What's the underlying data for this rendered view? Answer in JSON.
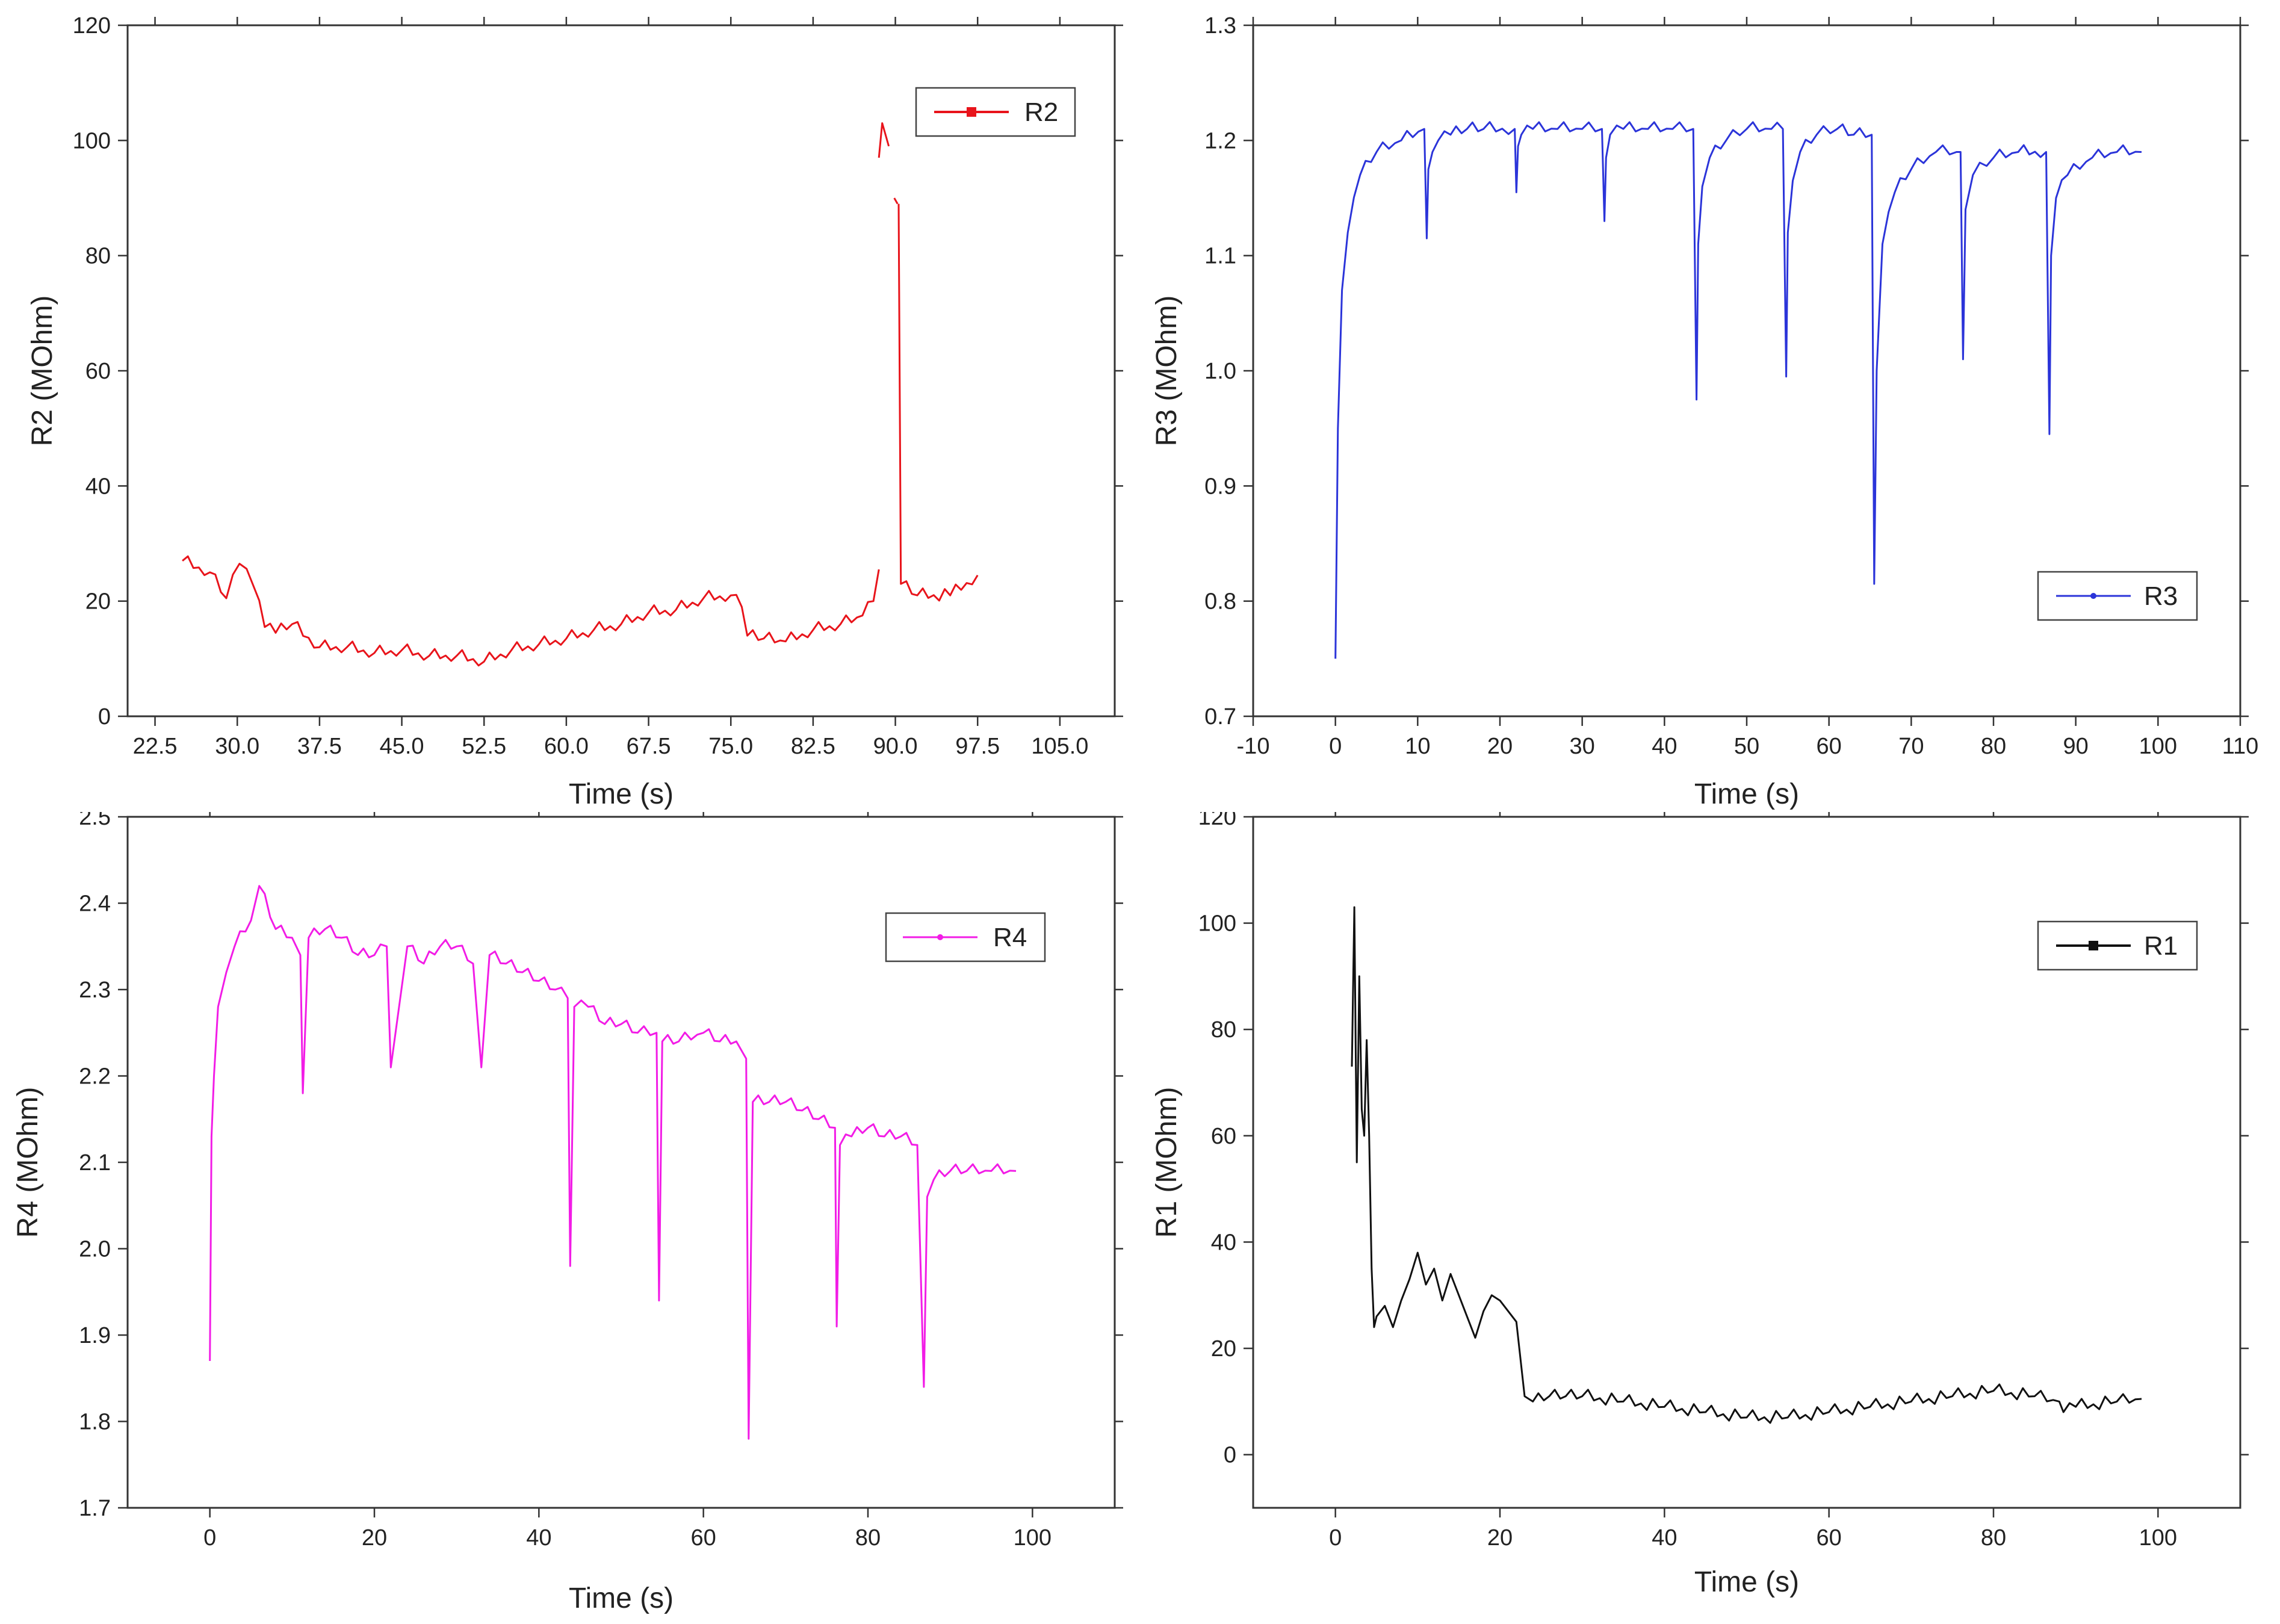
{
  "chart_data": [
    {
      "id": "r2",
      "type": "line",
      "xlabel": "Time (s)",
      "ylabel": "R2 (MOhm)",
      "xlim": [
        20.0,
        110.0
      ],
      "ylim": [
        0,
        120
      ],
      "xticks": [
        22.5,
        30.0,
        37.5,
        45.0,
        52.5,
        60.0,
        67.5,
        75.0,
        82.5,
        90.0,
        97.5,
        105.0
      ],
      "xtick_labels": [
        "22.5",
        "30.0",
        "37.5",
        "45.0",
        "52.5",
        "60.0",
        "67.5",
        "75.0",
        "82.5",
        "90.0",
        "97.5",
        "105.0"
      ],
      "yticks": [
        0,
        20,
        40,
        60,
        80,
        100,
        120
      ],
      "ytick_labels": [
        "0",
        "20",
        "40",
        "60",
        "80",
        "100",
        "120"
      ],
      "legend": "top-right",
      "series": [
        {
          "name": "R2",
          "color": "#e8141b",
          "marker": "square",
          "segments": [
            {
              "x": [
                25,
                27.5,
                29,
                30.2,
                31.5,
                32.5,
                33.5,
                35,
                37.5,
                40,
                42.5,
                45,
                47.5,
                50,
                52.5,
                55,
                57.5,
                60,
                62.5,
                65,
                67.5,
                70,
                72.5,
                75,
                76,
                76.5,
                78,
                80,
                82.5,
                85,
                87,
                88,
                88.5
              ],
              "y": [
                27,
                25,
                20.5,
                26.5,
                22.5,
                15.5,
                14.5,
                16,
                12,
                12,
                11,
                11.5,
                10.5,
                10.5,
                9.5,
                11.5,
                12.5,
                13.5,
                15,
                16,
                18,
                18.5,
                20.5,
                21,
                19,
                14,
                13.5,
                13,
                15,
                16,
                17.5,
                20,
                25.5
              ]
            },
            {
              "x": [
                88.5,
                88.8,
                89.1,
                89.4
              ],
              "y": [
                97,
                103,
                101,
                99
              ]
            },
            {
              "x": [
                89.9,
                90.2
              ],
              "y": [
                90,
                89
              ]
            },
            {
              "x": [
                90.3,
                90.5,
                92,
                95,
                97.5
              ],
              "y": [
                89,
                23,
                21,
                21,
                24.5
              ]
            }
          ]
        }
      ]
    },
    {
      "id": "r3",
      "type": "line",
      "xlabel": "Time (s)",
      "ylabel": "R3 (MOhm)",
      "xlim": [
        -10,
        110
      ],
      "ylim": [
        0.7,
        1.3
      ],
      "xticks": [
        -10,
        0,
        10,
        20,
        30,
        40,
        50,
        60,
        70,
        80,
        90,
        100,
        110
      ],
      "xtick_labels": [
        "-10",
        "0",
        "10",
        "20",
        "30",
        "40",
        "50",
        "60",
        "70",
        "80",
        "90",
        "100",
        "110"
      ],
      "yticks": [
        0.7,
        0.8,
        0.9,
        1.0,
        1.1,
        1.2,
        1.3
      ],
      "ytick_labels": [
        "0.7",
        "0.8",
        "0.9",
        "1.0",
        "1.1",
        "1.2",
        "1.3"
      ],
      "legend": "bottom-right",
      "series": [
        {
          "name": "R3",
          "color": "#2b34d9",
          "marker": "dot",
          "x": [
            0,
            0.3,
            0.8,
            1.5,
            3,
            5,
            8,
            10.8,
            11.1,
            11.3,
            11.8,
            12.5,
            14,
            16,
            18,
            21.8,
            22,
            22.2,
            22.6,
            24,
            27,
            30,
            32.4,
            32.7,
            32.9,
            33.4,
            35,
            38,
            41,
            43.5,
            43.9,
            44.1,
            44.6,
            45.5,
            47.5,
            50,
            53,
            54.4,
            54.8,
            55,
            55.6,
            56.5,
            58.5,
            61,
            63,
            65.2,
            65.5,
            65.8,
            66.5,
            68,
            70,
            73,
            75.5,
            76,
            76.3,
            76.6,
            77.5,
            80,
            83,
            86.4,
            86.8,
            87,
            87.6,
            89,
            92,
            95,
            98
          ],
          "y": [
            0.75,
            0.95,
            1.07,
            1.12,
            1.17,
            1.19,
            1.2,
            1.21,
            1.115,
            1.175,
            1.19,
            1.2,
            1.205,
            1.21,
            1.21,
            1.21,
            1.155,
            1.195,
            1.205,
            1.21,
            1.21,
            1.21,
            1.21,
            1.13,
            1.185,
            1.205,
            1.21,
            1.21,
            1.21,
            1.21,
            0.975,
            1.11,
            1.16,
            1.185,
            1.2,
            1.21,
            1.21,
            1.21,
            0.995,
            1.12,
            1.165,
            1.19,
            1.205,
            1.21,
            1.205,
            1.205,
            0.815,
            1.0,
            1.11,
            1.155,
            1.175,
            1.19,
            1.19,
            1.19,
            1.01,
            1.14,
            1.17,
            1.185,
            1.19,
            1.19,
            0.945,
            1.1,
            1.15,
            1.17,
            1.185,
            1.19,
            1.19
          ]
        }
      ]
    },
    {
      "id": "r4",
      "type": "line",
      "xlabel": "Time (s)",
      "ylabel": "R4 (MOhm)",
      "xlim": [
        -10,
        110
      ],
      "ylim": [
        1.7,
        2.5
      ],
      "xticks": [
        0,
        20,
        40,
        60,
        80,
        100
      ],
      "xtick_labels": [
        "0",
        "20",
        "40",
        "60",
        "80",
        "100"
      ],
      "yticks": [
        1.7,
        1.8,
        1.9,
        2.0,
        2.1,
        2.2,
        2.3,
        2.4,
        2.5
      ],
      "ytick_labels": [
        "1.7",
        "1.8",
        "1.9",
        "2.0",
        "2.1",
        "2.2",
        "2.3",
        "2.4",
        "2.5"
      ],
      "legend": "top-right",
      "series": [
        {
          "name": "R4",
          "color": "#f21ce6",
          "marker": "dot",
          "x": [
            0,
            0.2,
            0.5,
            1,
            2,
            3,
            5,
            6,
            8,
            10,
            11,
            11.3,
            12,
            14,
            16,
            18,
            20,
            21.5,
            22,
            24,
            26,
            28,
            30,
            32,
            33,
            34,
            36,
            38,
            40,
            42,
            43.5,
            43.8,
            44.3,
            46,
            48,
            50,
            52,
            54.3,
            54.6,
            55,
            57,
            60,
            62,
            64,
            65.2,
            65.5,
            66,
            68,
            70,
            72,
            74,
            76,
            76.2,
            76.6,
            78,
            80,
            82,
            84,
            86,
            86.8,
            87.2,
            88,
            90,
            92,
            95,
            98
          ],
          "y": [
            1.87,
            2.13,
            2.2,
            2.28,
            2.32,
            2.35,
            2.38,
            2.42,
            2.37,
            2.36,
            2.34,
            2.18,
            2.36,
            2.37,
            2.36,
            2.34,
            2.34,
            2.35,
            2.21,
            2.35,
            2.33,
            2.35,
            2.35,
            2.33,
            2.21,
            2.34,
            2.33,
            2.32,
            2.31,
            2.3,
            2.29,
            1.98,
            2.28,
            2.28,
            2.26,
            2.26,
            2.25,
            2.25,
            1.94,
            2.24,
            2.24,
            2.25,
            2.24,
            2.24,
            2.22,
            1.78,
            2.17,
            2.17,
            2.17,
            2.16,
            2.15,
            2.14,
            1.91,
            2.12,
            2.13,
            2.14,
            2.13,
            2.13,
            2.12,
            1.84,
            2.06,
            2.08,
            2.09,
            2.09,
            2.09,
            2.09
          ]
        }
      ]
    },
    {
      "id": "r1",
      "type": "line",
      "xlabel": "Time (s)",
      "ylabel": "R1 (MOhm)",
      "xlim": [
        -10,
        110
      ],
      "ylim": [
        -10,
        120
      ],
      "xticks": [
        0,
        20,
        40,
        60,
        80,
        100
      ],
      "xtick_labels": [
        "0",
        "20",
        "40",
        "60",
        "80",
        "100"
      ],
      "yticks": [
        0,
        20,
        40,
        60,
        80,
        100,
        120
      ],
      "ytick_labels": [
        "0",
        "20",
        "40",
        "60",
        "80",
        "100",
        "120"
      ],
      "legend": "top-right",
      "series": [
        {
          "name": "R1",
          "color": "#111111",
          "marker": "square",
          "x": [
            2,
            2.3,
            2.6,
            2.9,
            3.2,
            3.5,
            3.8,
            4.1,
            4.4,
            4.7,
            5,
            6,
            7,
            8,
            9,
            10,
            11,
            12,
            13,
            14,
            15,
            16,
            17,
            18,
            19,
            20,
            21,
            22,
            23,
            24,
            26,
            28,
            30,
            35,
            40,
            45,
            50,
            55,
            60,
            65,
            70,
            75,
            80,
            85,
            88,
            88.5,
            90,
            95,
            98
          ],
          "y": [
            73,
            103,
            55,
            90,
            65,
            60,
            78,
            60,
            35,
            24,
            26,
            28,
            24,
            29,
            33,
            38,
            32,
            35,
            29,
            34,
            30,
            26,
            22,
            27,
            30,
            29,
            27,
            25,
            11,
            10,
            11,
            11,
            11,
            10,
            9,
            8,
            7,
            7,
            8,
            9,
            10,
            11,
            12,
            11,
            10,
            8,
            9,
            10,
            10.5
          ]
        }
      ]
    }
  ]
}
